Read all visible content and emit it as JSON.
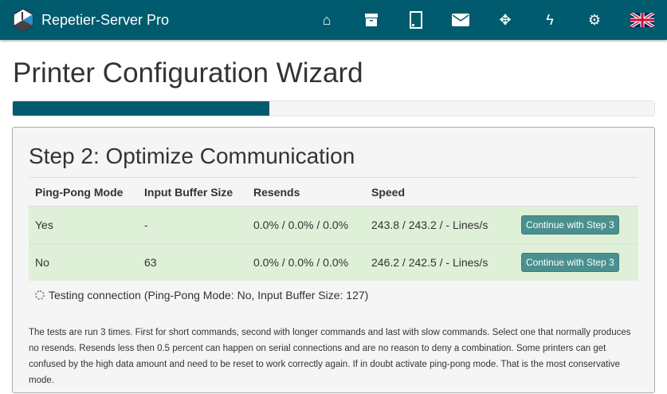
{
  "app": {
    "title": "Repetier-Server Pro",
    "accent": "#005b6e"
  },
  "nav": {
    "icons": [
      "home-icon",
      "archive-icon",
      "tablet-icon",
      "envelope-icon",
      "expand-icon",
      "bolt-icon",
      "gear-icon",
      "uk-flag-icon"
    ]
  },
  "page": {
    "title": "Printer Configuration Wizard",
    "progress_percent": 40
  },
  "step": {
    "title": "Step 2: Optimize Communication",
    "headers": [
      "Ping-Pong Mode",
      "Input Buffer Size",
      "Resends",
      "Speed"
    ],
    "rows": [
      {
        "mode": "Yes",
        "buffer": "-",
        "resends": "0.0% / 0.0% / 0.0%",
        "speed": "243.8 / 243.2 / - Lines/s",
        "button": "Continue with Step 3"
      },
      {
        "mode": "No",
        "buffer": "63",
        "resends": "0.0% / 0.0% / 0.0%",
        "speed": "246.2 / 242.5 / - Lines/s",
        "button": "Continue with Step 3"
      }
    ],
    "testing": "Testing connection (Ping-Pong Mode: No, Input Buffer Size: 127)",
    "note": "The tests are run 3 times. First for short commands, second with longer commands and last with slow commands. Select one that normally produces no resends. Resends less then 0.5 percent can happen on serial connections and are no reason to deny a combination. Some printers can get confused by the high data amount and need to be reset to work correctly again. If in doubt activate ping-pong mode. That is the most conservative mode."
  }
}
